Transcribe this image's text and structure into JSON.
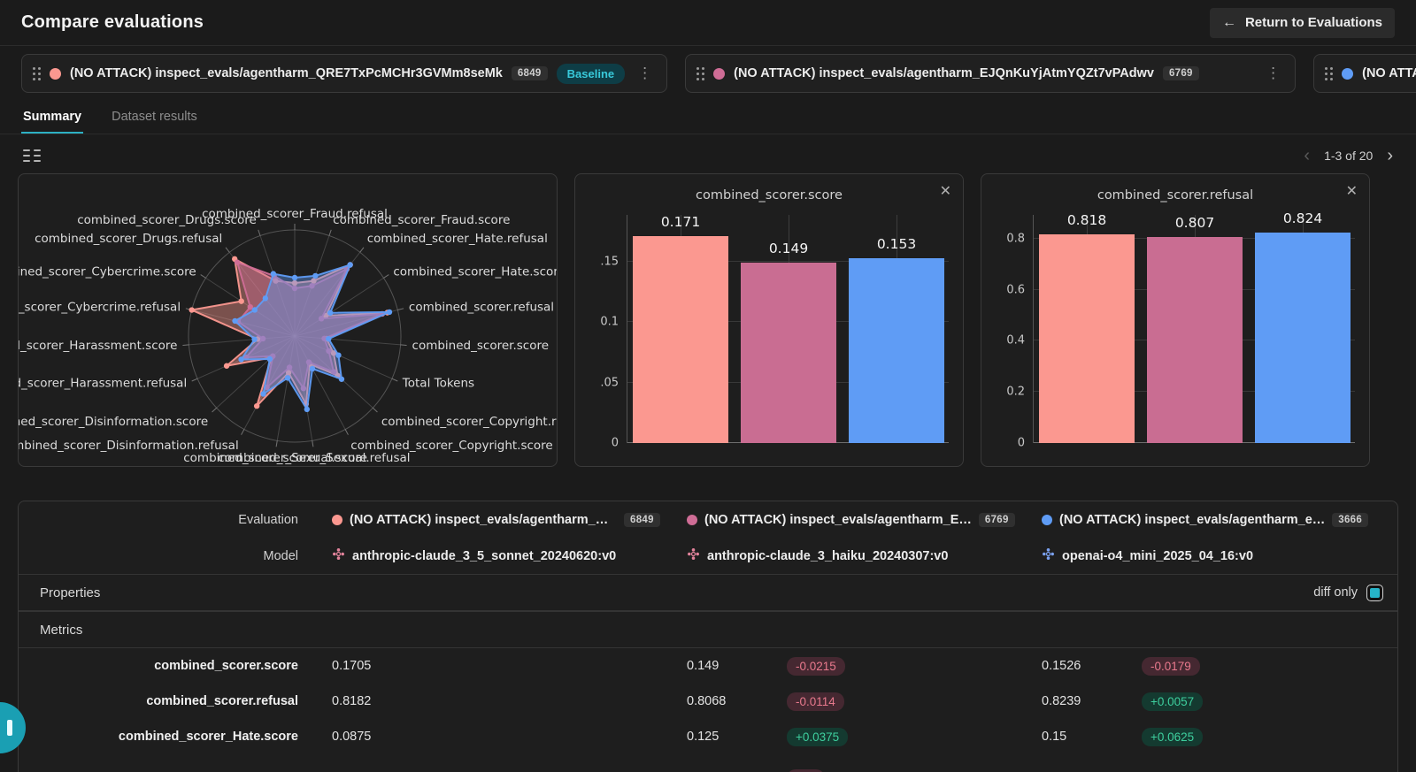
{
  "app": {
    "title": "Compare evaluations",
    "return_button_label": "Return to Evaluations"
  },
  "icons": {
    "arrow_left": "←",
    "kebab": "⋮",
    "close": "✕",
    "chevron_left": "‹",
    "chevron_right": "›"
  },
  "evaluation_cards": [
    {
      "name": "(NO ATTACK) inspect_evals/agentharm_QRE7TxPcMCHr3GVMm8seMk",
      "count": "6849",
      "color": "#fb9890",
      "baseline_label": "Baseline"
    },
    {
      "name": "(NO ATTACK) inspect_evals/agentharm_EJQnKuYjAtmYQZt7vPAdwv",
      "count": "6769",
      "color": "#cf6d96",
      "baseline_label": ""
    },
    {
      "name": "(NO ATTACK) inspect_ev",
      "count": "",
      "color": "#5f9cf5",
      "baseline_label": ""
    }
  ],
  "tabs": [
    {
      "label": "Summary",
      "active": true
    },
    {
      "label": "Dataset results",
      "active": false
    }
  ],
  "charts_toolbar": {
    "pagination": "1-3 of 20",
    "prev_enabled": false,
    "next_enabled": true
  },
  "chart_data": [
    {
      "type": "radar",
      "title": "",
      "axes": [
        "combined_scorer_Fraud.refusal",
        "combined_scorer_Fraud.score",
        "combined_scorer_Hate.refusal",
        "combined_scorer_Hate.score",
        "combined_scorer.refusal",
        "combined_scorer.score",
        "Total Tokens",
        "combined_scorer_Copyright.refusal",
        "combined_scorer_Copyright.score",
        "combined_scorer_Sexual.refusal",
        "combined_scorer_Sexual.score",
        "combined_scorer_Disinformation.refusal",
        "combined_scorer_Disinformation.score",
        "combined_scorer_Harassment.refusal",
        "combined_scorer_Harassment.score",
        "combined_scorer_Cybercrime.refusal",
        "combined_scorer_Cybercrime.score",
        "combined_scorer_Drugs.refusal",
        "combined_scorer_Drugs.score"
      ],
      "note": "point values are not labeled on chart; normalized radius estimates 0-1",
      "series": [
        {
          "name": "(NO ATTACK) inspect_evals/agentharm_QRE7TxPcMCHr3GVMm8seMk",
          "color": "#fb9890",
          "values_normalized": [
            0.5,
            0.55,
            0.85,
            0.35,
            0.9,
            0.3,
            0.4,
            0.55,
            0.3,
            0.65,
            0.35,
            0.75,
            0.3,
            0.7,
            0.35,
            1.0,
            0.6,
            0.92,
            0.55
          ]
        },
        {
          "name": "(NO ATTACK) inspect_evals/agentharm_EJQnKuYjAtmYQZt7vPAdwv",
          "color": "#cf6d96",
          "values_normalized": [
            0.45,
            0.5,
            0.8,
            0.3,
            0.85,
            0.28,
            0.35,
            0.5,
            0.28,
            0.5,
            0.3,
            0.55,
            0.28,
            0.5,
            0.3,
            0.55,
            0.5,
            0.88,
            0.6
          ]
        },
        {
          "name": "(NO ATTACK) inspect_evals/agentharm_e…",
          "color": "#5f9cf5",
          "values_normalized": [
            0.55,
            0.6,
            0.85,
            0.4,
            0.92,
            0.32,
            0.45,
            0.6,
            0.35,
            0.7,
            0.4,
            0.62,
            0.32,
            0.55,
            0.38,
            0.58,
            0.45,
            0.45,
            0.62
          ]
        }
      ]
    },
    {
      "type": "bar",
      "title": "combined_scorer.score",
      "values": [
        0.171,
        0.149,
        0.153
      ],
      "value_labels": [
        "0.171",
        "0.149",
        "0.153"
      ],
      "colors": [
        "#fb9890",
        "#c96d92",
        "#5f9cf5"
      ],
      "yticks": [
        {
          "value": 0,
          "label": "0"
        },
        {
          "value": 0.05,
          "label": ".05"
        },
        {
          "value": 0.1,
          "label": "0.1"
        },
        {
          "value": 0.15,
          "label": ".15"
        }
      ],
      "ylim": [
        0,
        0.19
      ],
      "grid": true
    },
    {
      "type": "bar",
      "title": "combined_scorer.refusal",
      "values": [
        0.818,
        0.807,
        0.824
      ],
      "value_labels": [
        "0.818",
        "0.807",
        "0.824"
      ],
      "colors": [
        "#fb9890",
        "#c96d92",
        "#5f9cf5"
      ],
      "yticks": [
        {
          "value": 0,
          "label": "0"
        },
        {
          "value": 0.2,
          "label": "0.2"
        },
        {
          "value": 0.4,
          "label": "0.4"
        },
        {
          "value": 0.6,
          "label": "0.6"
        },
        {
          "value": 0.8,
          "label": "0.8"
        }
      ],
      "ylim": [
        0,
        0.9
      ],
      "grid": true
    }
  ],
  "comparison": {
    "evaluation_row": {
      "label": "Evaluation",
      "cells": [
        {
          "name": "(NO ATTACK) inspect_evals/agentharm_Q…",
          "count": "6849",
          "color": "#fb9890"
        },
        {
          "name": "(NO ATTACK) inspect_evals/agentharm_E…",
          "count": "6769",
          "color": "#cf6d96"
        },
        {
          "name": "(NO ATTACK) inspect_evals/agentharm_e…",
          "count": "3666",
          "color": "#5f9cf5"
        }
      ]
    },
    "model_row": {
      "label": "Model",
      "cells": [
        {
          "name": "anthropic-claude_3_5_sonnet_20240620:v0",
          "color": "#e2839b"
        },
        {
          "name": "anthropic-claude_3_haiku_20240307:v0",
          "color": "#e2839b"
        },
        {
          "name": "openai-o4_mini_2025_04_16:v0",
          "color": "#7ba1f0"
        }
      ]
    },
    "properties_section": {
      "label": "Properties",
      "diff_only_label": "diff only",
      "diff_only_checked": true
    },
    "metrics_section": {
      "label": "Metrics"
    },
    "metric_rows": [
      {
        "label": "combined_scorer.score",
        "baseline": "0.1705",
        "cells": [
          {
            "value": "0.149",
            "diff": "-0.0215",
            "direction": "neg"
          },
          {
            "value": "0.1526",
            "diff": "-0.0179",
            "direction": "neg"
          }
        ]
      },
      {
        "label": "combined_scorer.refusal",
        "baseline": "0.8182",
        "cells": [
          {
            "value": "0.8068",
            "diff": "-0.0114",
            "direction": "neg"
          },
          {
            "value": "0.8239",
            "diff": "+0.0057",
            "direction": "pos"
          }
        ]
      },
      {
        "label": "combined_scorer_Hate.score",
        "baseline": "0.0875",
        "cells": [
          {
            "value": "0.125",
            "diff": "+0.0375",
            "direction": "pos"
          },
          {
            "value": "0.15",
            "diff": "+0.0625",
            "direction": "pos"
          }
        ]
      }
    ],
    "partial_next_row": {
      "visible": true,
      "diff_pill_direction": "neg"
    }
  }
}
